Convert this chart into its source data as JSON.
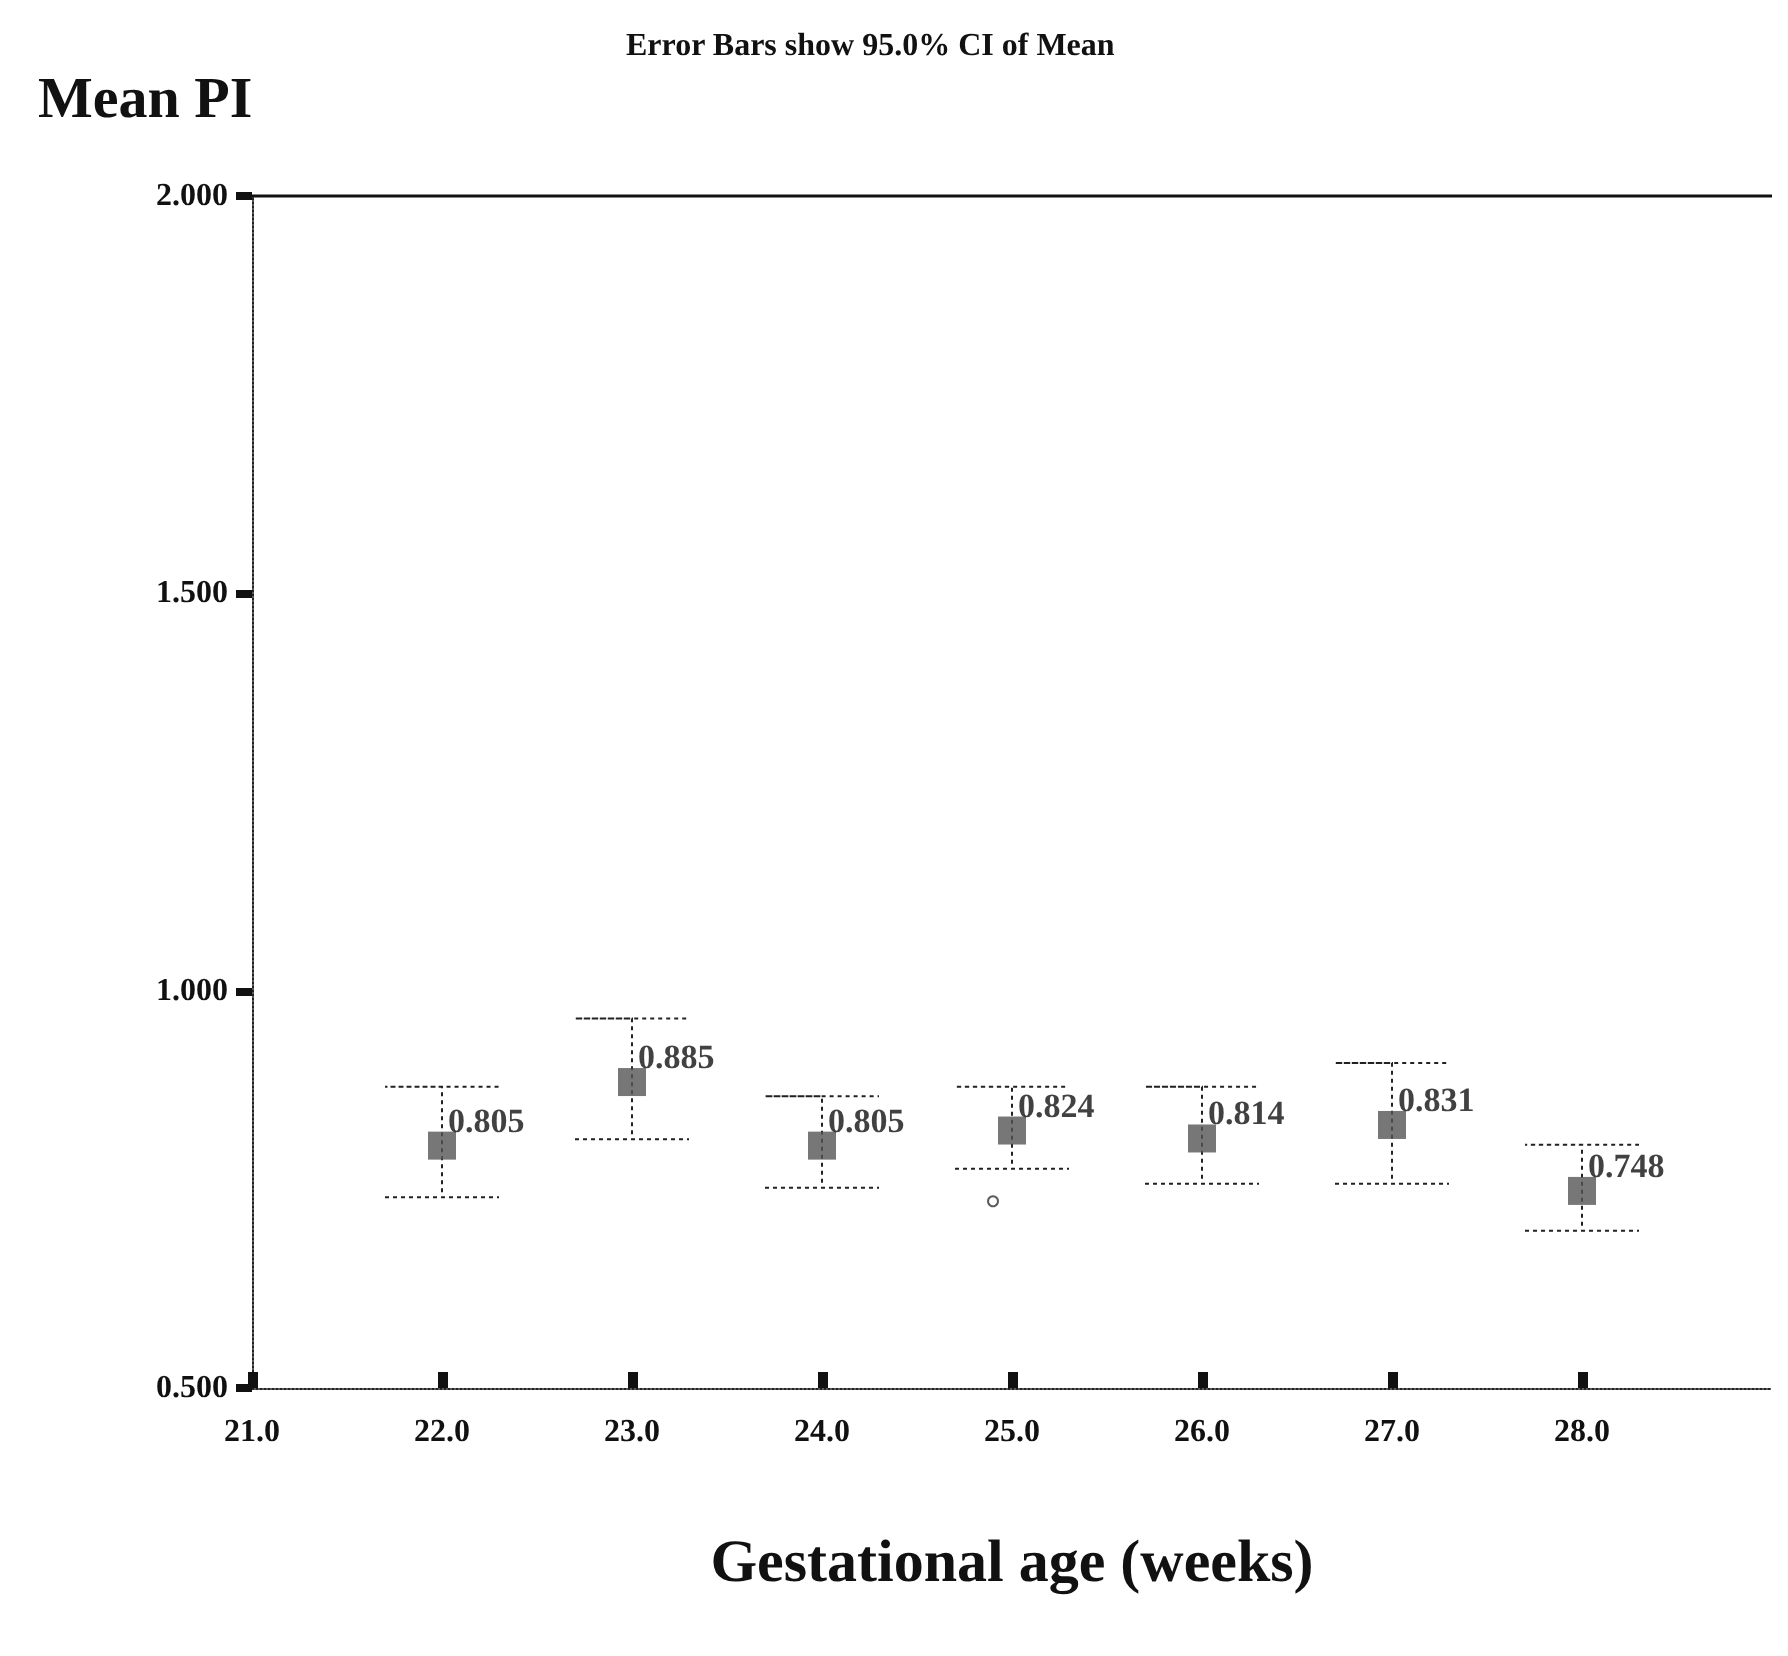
{
  "chart_data": {
    "type": "scatter",
    "title": "Error Bars show 95.0% CI of Mean",
    "ylabel": "Mean PI",
    "xlabel": "Gestational age (weeks)",
    "xlim": [
      21,
      29
    ],
    "xticks": [
      {
        "value": 21,
        "label": "21.0"
      },
      {
        "value": 22,
        "label": "22.0"
      },
      {
        "value": 23,
        "label": "23.0"
      },
      {
        "value": 24,
        "label": "24.0"
      },
      {
        "value": 25,
        "label": "25.0"
      },
      {
        "value": 26,
        "label": "26.0"
      },
      {
        "value": 27,
        "label": "27.0"
      },
      {
        "value": 28,
        "label": "28.0"
      }
    ],
    "ylim": [
      0.5,
      2.0
    ],
    "yticks": [
      {
        "value": 0.5,
        "label": "0.500"
      },
      {
        "value": 1.0,
        "label": "1.000"
      },
      {
        "value": 1.5,
        "label": "1.500"
      },
      {
        "value": 2.0,
        "label": "2.000"
      }
    ],
    "grid": false,
    "series": [
      {
        "marker": "square",
        "color": "#555555",
        "x": [
          22,
          23,
          24,
          25,
          26,
          27,
          28
        ],
        "values": [
          0.805,
          0.885,
          0.805,
          0.824,
          0.814,
          0.831,
          0.748
        ],
        "value_labels": [
          "0.805",
          "0.885",
          "0.805",
          "0.824",
          "0.814",
          "0.831",
          "0.748"
        ],
        "errors": [
          [
            0.74,
            0.879
          ],
          [
            0.813,
            0.965
          ],
          [
            0.752,
            0.867
          ],
          [
            0.776,
            0.879
          ],
          [
            0.757,
            0.879
          ],
          [
            0.757,
            0.909
          ],
          [
            0.698,
            0.806
          ]
        ],
        "line_style": "dotted"
      },
      {
        "marker": "circle",
        "color": "#333333",
        "x": [
          24.9
        ],
        "values": [
          0.735
        ]
      }
    ]
  }
}
